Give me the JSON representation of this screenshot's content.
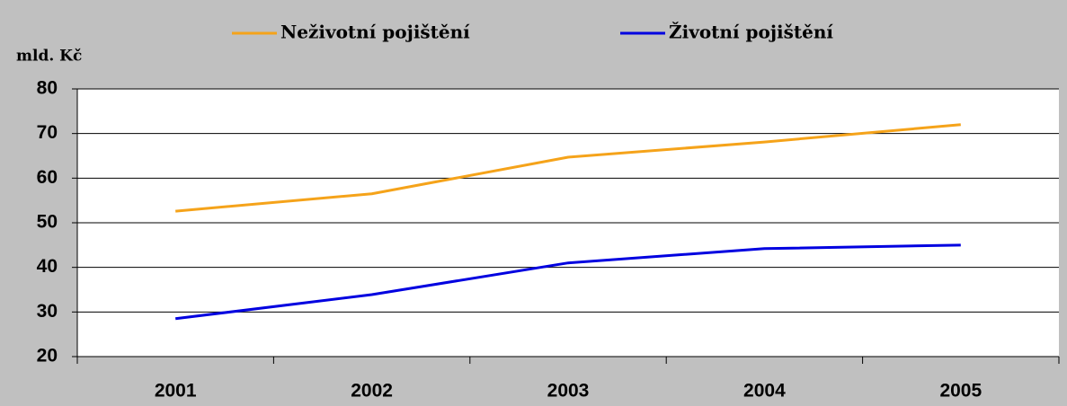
{
  "chart_data": {
    "type": "line",
    "ylabel": "mld. Kč",
    "categories": [
      "2001",
      "2002",
      "2003",
      "2004",
      "2005"
    ],
    "series": [
      {
        "name": "Neživotní pojištění",
        "color": "#f5a31a",
        "values": [
          52.6,
          56.5,
          64.7,
          68.1,
          72.0
        ]
      },
      {
        "name": "Životní pojištění",
        "color": "#0000e0",
        "values": [
          28.5,
          33.9,
          41.0,
          44.2,
          45.0
        ]
      }
    ],
    "ylim": [
      20,
      80
    ],
    "yticks": [
      20,
      30,
      40,
      50,
      60,
      70,
      80
    ],
    "grid": true,
    "legend": "top"
  }
}
